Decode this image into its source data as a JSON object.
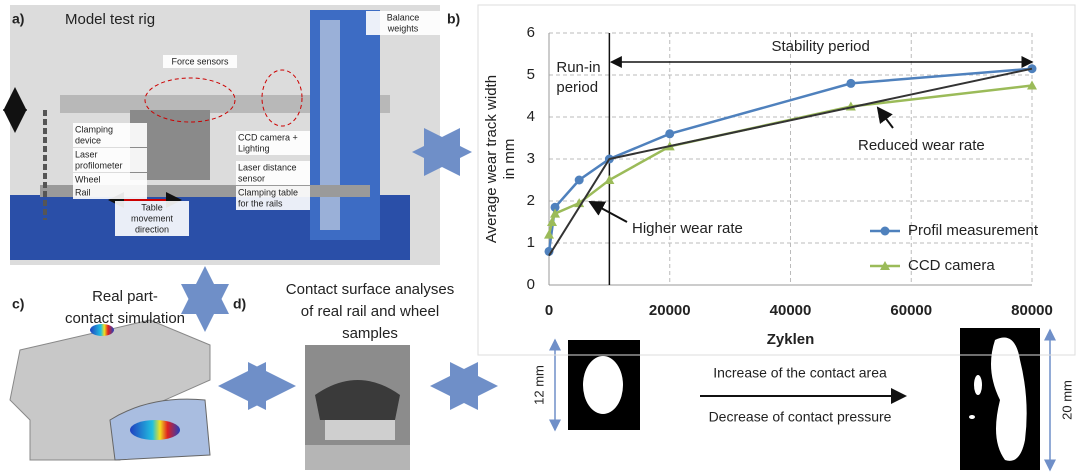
{
  "panel_a": {
    "label": "a)",
    "title": "Model test rig",
    "callouts": [
      [
        "Balance",
        "weights"
      ],
      [
        "Force sensors"
      ],
      [
        "Clamping",
        "device"
      ],
      [
        "Laser",
        "profilometer"
      ],
      [
        "Wheel"
      ],
      [
        "Rail"
      ],
      [
        "CCD camera +",
        "Lighting"
      ],
      [
        "Laser distance",
        "sensor"
      ],
      [
        "Clamping table",
        "for the rails"
      ],
      [
        "Table",
        "movement",
        "direction"
      ]
    ]
  },
  "panel_c": {
    "label": "c)",
    "title": [
      "Real part-",
      "contact simulation"
    ]
  },
  "panel_d": {
    "label": "d)",
    "title": [
      "Contact surface analyses",
      "of real rail and wheel",
      "samples"
    ]
  },
  "contact_comparison": {
    "left_size": "12 mm",
    "right_size": "20 mm",
    "arrow_text": [
      "Increase of the contact area",
      "Decrease of contact pressure"
    ]
  },
  "chart_data": {
    "label": "b)",
    "type": "line",
    "x_label": "Zyklen",
    "y_label": [
      "Average wear track width",
      "in mm"
    ],
    "xlim": [
      0,
      80000
    ],
    "ylim": [
      0,
      6
    ],
    "xticks": [
      0,
      20000,
      40000,
      60000,
      80000
    ],
    "yticks": [
      0,
      1,
      2,
      3,
      4,
      5,
      6
    ],
    "grid": true,
    "legend": "lower right",
    "series": [
      {
        "name": "Profil measurement",
        "color": "#4f81bd",
        "marker": "circle",
        "x": [
          0,
          1000,
          5000,
          10000,
          20000,
          50000,
          80000
        ],
        "values": [
          0.8,
          1.85,
          2.5,
          3.0,
          3.6,
          4.8,
          5.15
        ]
      },
      {
        "name": "CCD camera",
        "color": "#9bbb59",
        "marker": "triangle",
        "x": [
          0,
          500,
          1000,
          5000,
          10000,
          20000,
          50000,
          80000
        ],
        "values": [
          1.2,
          1.5,
          1.7,
          1.95,
          2.5,
          3.3,
          4.25,
          4.75
        ]
      }
    ],
    "trend_line": {
      "color": "#333333",
      "x": [
        0,
        10000,
        80000
      ],
      "values": [
        0.7,
        3.0,
        5.15
      ]
    },
    "phase_boundary": 10000,
    "annotations": {
      "run_in": [
        "Run-in",
        "period"
      ],
      "stability": "Stability period",
      "reduced": "Reduced wear rate",
      "higher": "Higher wear rate"
    }
  }
}
